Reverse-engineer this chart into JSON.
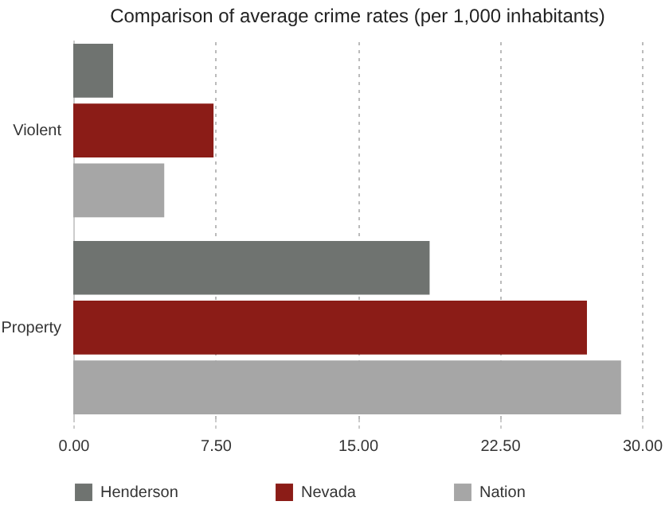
{
  "chart_data": {
    "type": "bar",
    "orientation": "horizontal",
    "title": "Comparison of average crime rates (per 1,000 inhabitants)",
    "categories": [
      "Violent",
      "Property"
    ],
    "series": [
      {
        "name": "Henderson",
        "color": "#6f7370",
        "values": [
          2.1,
          18.8
        ]
      },
      {
        "name": "Nevada",
        "color": "#8b1c17",
        "values": [
          7.4,
          27.1
        ]
      },
      {
        "name": "Nation",
        "color": "#a6a6a6",
        "values": [
          4.8,
          28.9
        ]
      }
    ],
    "xlim": [
      0,
      30
    ],
    "xticks": [
      {
        "value": 0,
        "label": "0.00"
      },
      {
        "value": 7.5,
        "label": "7.50"
      },
      {
        "value": 15,
        "label": "15.00"
      },
      {
        "value": 22.5,
        "label": "22.50"
      },
      {
        "value": 30,
        "label": "30.00"
      }
    ],
    "grid": "x",
    "legend": "bottom"
  }
}
